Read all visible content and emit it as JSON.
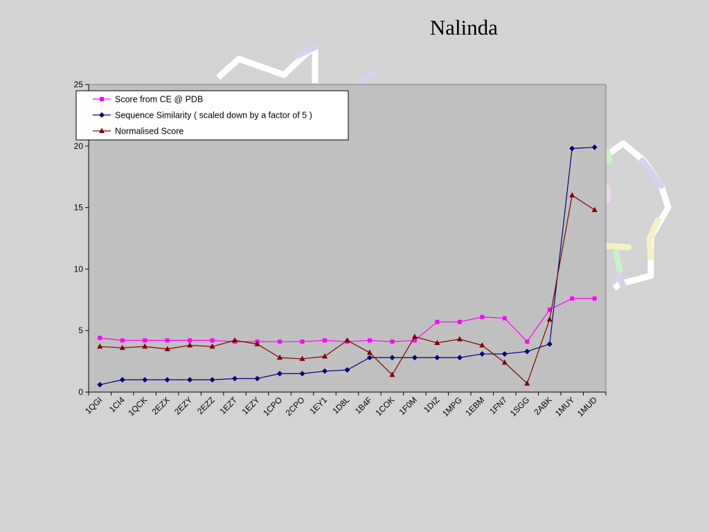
{
  "slide": {
    "title": "Nalinda"
  },
  "chart_data": {
    "type": "line",
    "title": "",
    "xlabel": "",
    "ylabel": "",
    "ylim": [
      0,
      25
    ],
    "yticks": [
      0,
      5,
      10,
      15,
      20,
      25
    ],
    "grid": false,
    "legend_position": "top-left",
    "plot_background": "#c0c0c0",
    "categories": [
      "1QGI",
      "1CI4",
      "1QCK",
      "2EZX",
      "2EZY",
      "2EZZ",
      "1EZT",
      "1EZY",
      "1CPO",
      "2CPO",
      "1EY1",
      "1D8L",
      "1B4F",
      "1COK",
      "1F0M",
      "1DIZ",
      "1MPG",
      "1EBM",
      "1FN7",
      "1SGG",
      "2ABK",
      "1MUY",
      "1MUD"
    ],
    "series": [
      {
        "name": "Score from CE @ PDB",
        "color": "#ff00ff",
        "marker": "square",
        "values": [
          4.4,
          4.2,
          4.2,
          4.2,
          4.2,
          4.2,
          4.1,
          4.1,
          4.1,
          4.1,
          4.2,
          4.1,
          4.2,
          4.1,
          4.2,
          5.7,
          5.7,
          6.1,
          6.0,
          4.1,
          6.7,
          7.6,
          7.6
        ]
      },
      {
        "name": "Sequence Similarity ( scaled down by a factor of 5 )",
        "color": "#000080",
        "marker": "diamond",
        "values": [
          0.6,
          1.0,
          1.0,
          1.0,
          1.0,
          1.0,
          1.1,
          1.1,
          1.5,
          1.5,
          1.7,
          1.8,
          2.8,
          2.8,
          2.8,
          2.8,
          2.8,
          3.1,
          3.1,
          3.3,
          3.9,
          19.8,
          19.9
        ]
      },
      {
        "name": "Normalised Score",
        "color": "#800000",
        "marker": "triangle",
        "values": [
          3.7,
          3.6,
          3.7,
          3.5,
          3.8,
          3.7,
          4.2,
          3.9,
          2.8,
          2.7,
          2.9,
          4.2,
          3.2,
          1.4,
          4.5,
          4.0,
          4.3,
          3.8,
          2.4,
          0.7,
          5.9,
          16.0,
          14.8
        ]
      }
    ]
  }
}
